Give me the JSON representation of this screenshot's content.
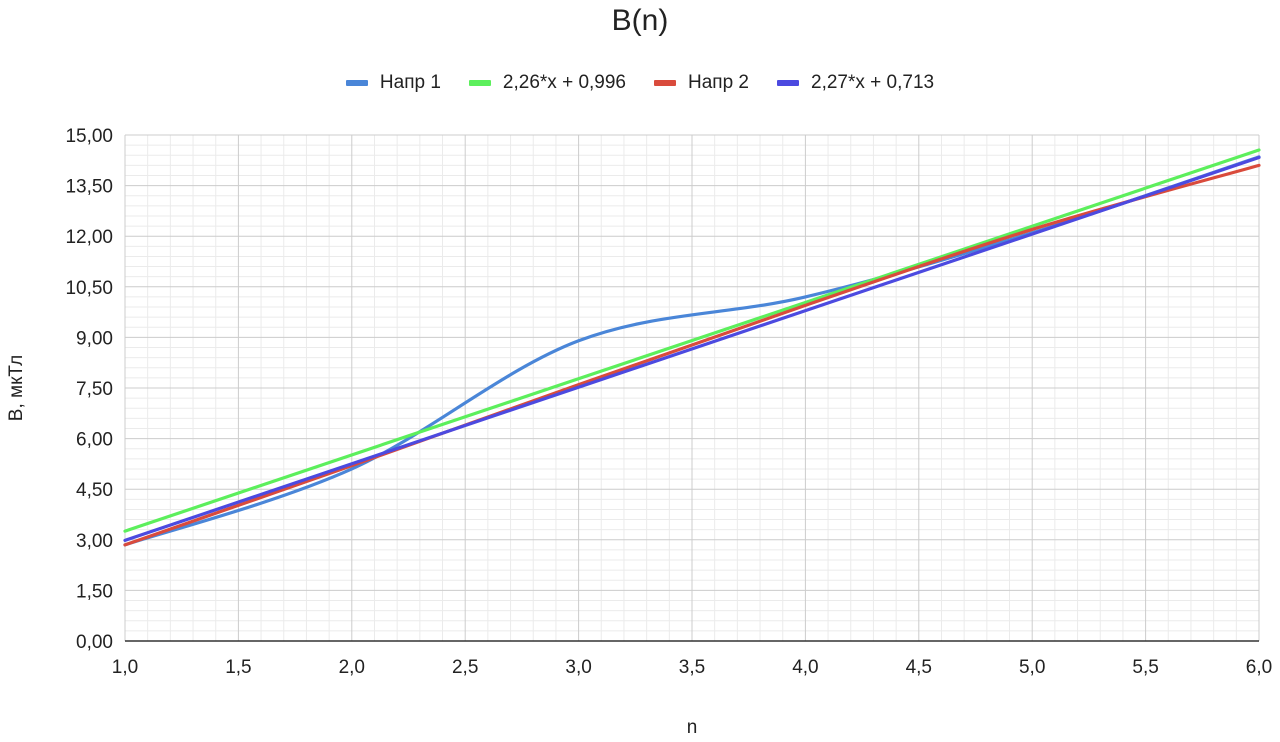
{
  "chart_data": {
    "type": "line",
    "title": "B(n)",
    "xlabel": "n",
    "ylabel": "B, мкТл",
    "xlim": [
      1.0,
      6.0
    ],
    "ylim": [
      0,
      15
    ],
    "grid": true,
    "legend_position": "top",
    "x_ticks": [
      "1,0",
      "1,5",
      "2,0",
      "2,5",
      "3,0",
      "3,5",
      "4,0",
      "4,5",
      "5,0",
      "5,5",
      "6,0"
    ],
    "y_ticks": [
      "0,00",
      "1,50",
      "3,00",
      "4,50",
      "6,00",
      "7,50",
      "9,00",
      "10,50",
      "12,00",
      "13,50",
      "15,00"
    ],
    "series": [
      {
        "name": "Напр 1",
        "color": "#4a86d8",
        "x": [
          1,
          2,
          3,
          4,
          5,
          6
        ],
        "y": [
          2.85,
          5.1,
          8.9,
          10.2,
          12.1,
          14.35
        ]
      },
      {
        "name": "2,26*x + 0,996",
        "color": "#5cef5c",
        "x": [
          1,
          6
        ],
        "y": [
          3.256,
          14.556
        ]
      },
      {
        "name": "Напр 2",
        "color": "#d94b3c",
        "x": [
          1,
          2,
          3,
          4,
          5,
          6
        ],
        "y": [
          2.85,
          5.2,
          7.6,
          9.95,
          12.2,
          14.1
        ]
      },
      {
        "name": "2,27*x + 0,713",
        "color": "#4c4ae0",
        "x": [
          1,
          6
        ],
        "y": [
          2.983,
          14.333
        ]
      }
    ]
  }
}
